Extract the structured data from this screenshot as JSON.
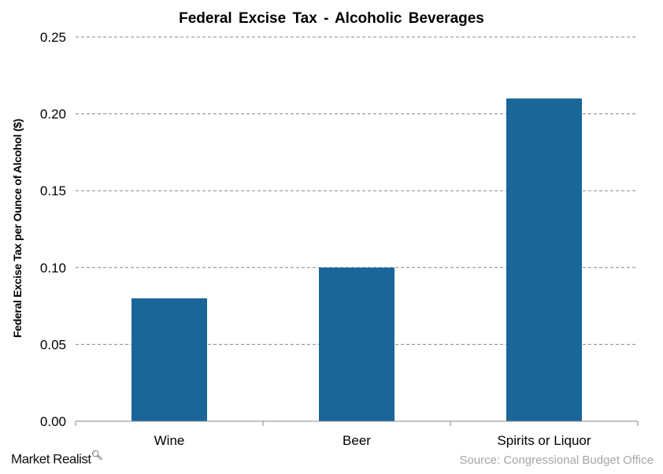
{
  "chart_data": {
    "type": "bar",
    "title": "Federal Excise Tax - Alcoholic Beverages",
    "xlabel": "",
    "ylabel": "Federal Excise Tax per Ounce of Alcohol ($)",
    "categories": [
      "Wine",
      "Beer",
      "Spirits or Liquor"
    ],
    "values": [
      0.08,
      0.1,
      0.21
    ],
    "ylim": [
      0,
      0.25
    ],
    "yticks": [
      "0.00",
      "0.05",
      "0.10",
      "0.15",
      "0.20",
      "0.25"
    ],
    "grid": true,
    "bar_color": "#1a6699"
  },
  "logo": "Market Realist",
  "source": "Source: Congressional Budget Office"
}
